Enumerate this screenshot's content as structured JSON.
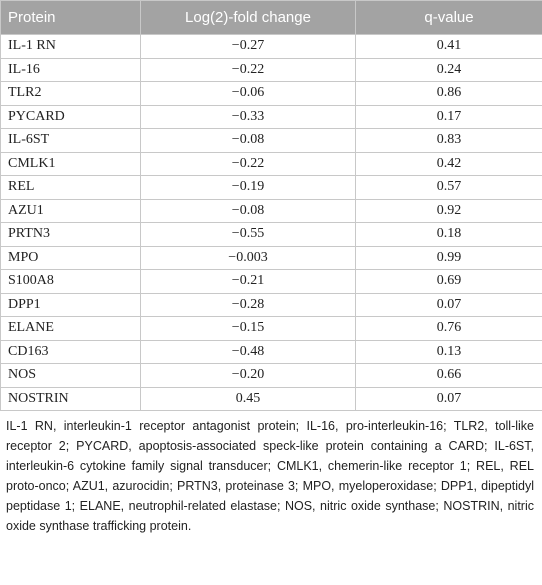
{
  "table": {
    "header": [
      "Protein",
      "Log(2)-fold change",
      "q-value"
    ],
    "rows": [
      [
        "IL-1 RN",
        "−0.27",
        "0.41"
      ],
      [
        "IL-16",
        "−0.22",
        "0.24"
      ],
      [
        "TLR2",
        "−0.06",
        "0.86"
      ],
      [
        "PYCARD",
        "−0.33",
        "0.17"
      ],
      [
        "IL-6ST",
        "−0.08",
        "0.83"
      ],
      [
        "CMLK1",
        "−0.22",
        "0.42"
      ],
      [
        "REL",
        "−0.19",
        "0.57"
      ],
      [
        "AZU1",
        "−0.08",
        "0.92"
      ],
      [
        "PRTN3",
        "−0.55",
        "0.18"
      ],
      [
        "MPO",
        "−0.003",
        "0.99"
      ],
      [
        "S100A8",
        "−0.21",
        "0.69"
      ],
      [
        "DPP1",
        "−0.28",
        "0.07"
      ],
      [
        "ELANE",
        "−0.15",
        "0.76"
      ],
      [
        "CD163",
        "−0.48",
        "0.13"
      ],
      [
        "NOS",
        "−0.20",
        "0.66"
      ],
      [
        "NOSTRIN",
        "0.45",
        "0.07"
      ]
    ]
  },
  "footnote": "IL-1 RN, interleukin-1 receptor antagonist protein; IL-16, pro-interleukin-16; TLR2, toll-like receptor 2; PYCARD, apoptosis-associated speck-like protein containing a CARD; IL-6ST, interleukin-6 cytokine family signal transducer; CMLK1, chemerin-like receptor 1; REL, REL proto-onco; AZU1, azurocidin; PRTN3, proteinase 3; MPO, myeloperoxidase; DPP1, dipeptidyl peptidase 1; ELANE, neutrophil-related elastase; NOS, nitric oxide synthase; NOSTRIN, nitric oxide synthase trafficking protein."
}
